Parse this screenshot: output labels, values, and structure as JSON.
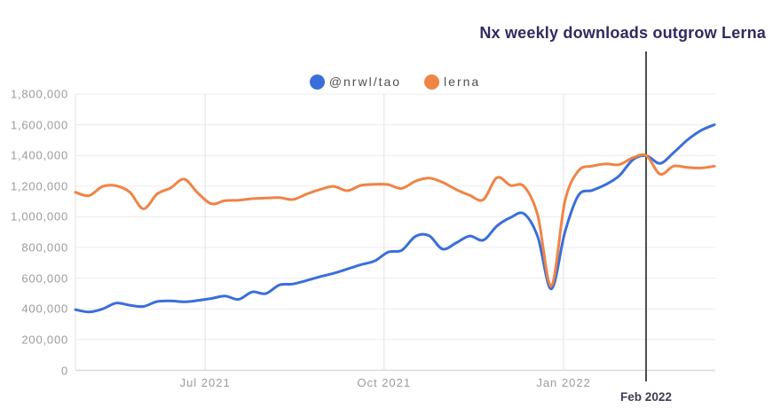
{
  "chart_data": {
    "type": "line",
    "title": "Nx weekly downloads outgrow Lerna",
    "xlabel": "",
    "ylabel": "",
    "ylim": [
      0,
      1800000
    ],
    "y_tick_step": 200000,
    "y_tick_labels": [
      "0",
      "200,000",
      "400,000",
      "600,000",
      "800,000",
      "1,000,000",
      "1,200,000",
      "1,400,000",
      "1,600,000",
      "1,800,000"
    ],
    "x_ticks": [
      {
        "label": "Jul 2021",
        "pos": 0.203
      },
      {
        "label": "Oct 2021",
        "pos": 0.483
      },
      {
        "label": "Jan 2022",
        "pos": 0.764
      }
    ],
    "annotation": {
      "label": "Feb 2022",
      "pos": 0.893
    },
    "legend_position": "top-center",
    "grid": true,
    "x_unit": "weeks (Apr 2021 - Mar 2022, evenly spaced)",
    "series": [
      {
        "name": "@nrwl/tao",
        "color": "#3a6fd8",
        "values": [
          395000,
          380000,
          400000,
          438000,
          424000,
          416000,
          448000,
          452000,
          446000,
          455000,
          468000,
          484000,
          462000,
          510000,
          500000,
          556000,
          562000,
          585000,
          610000,
          632000,
          660000,
          688000,
          712000,
          770000,
          782000,
          872000,
          878000,
          790000,
          830000,
          875000,
          848000,
          940000,
          995000,
          1020000,
          870000,
          530000,
          900000,
          1140000,
          1172000,
          1210000,
          1268000,
          1372000,
          1398000,
          1348000,
          1418000,
          1500000,
          1562000,
          1600000
        ]
      },
      {
        "name": "lerna",
        "color": "#ef8445",
        "values": [
          1160000,
          1138000,
          1198000,
          1202000,
          1160000,
          1052000,
          1148000,
          1188000,
          1245000,
          1155000,
          1085000,
          1105000,
          1108000,
          1118000,
          1122000,
          1125000,
          1113000,
          1148000,
          1178000,
          1198000,
          1170000,
          1205000,
          1212000,
          1210000,
          1185000,
          1232000,
          1252000,
          1225000,
          1178000,
          1140000,
          1112000,
          1255000,
          1205000,
          1198000,
          1010000,
          550000,
          1100000,
          1300000,
          1330000,
          1345000,
          1340000,
          1385000,
          1398000,
          1278000,
          1330000,
          1322000,
          1318000,
          1330000
        ]
      }
    ],
    "colors": {
      "title": "#312a5f",
      "axis_text": "#9b9b9b",
      "grid": "#ececec",
      "vertical_grid": "#e2e2e2",
      "axis_line": "#d9d9d9",
      "annotation_line": "#4a4a4a",
      "annotation_label": "#3d3d52",
      "legend_text": "#4f4f4f",
      "background": "#ffffff"
    }
  }
}
